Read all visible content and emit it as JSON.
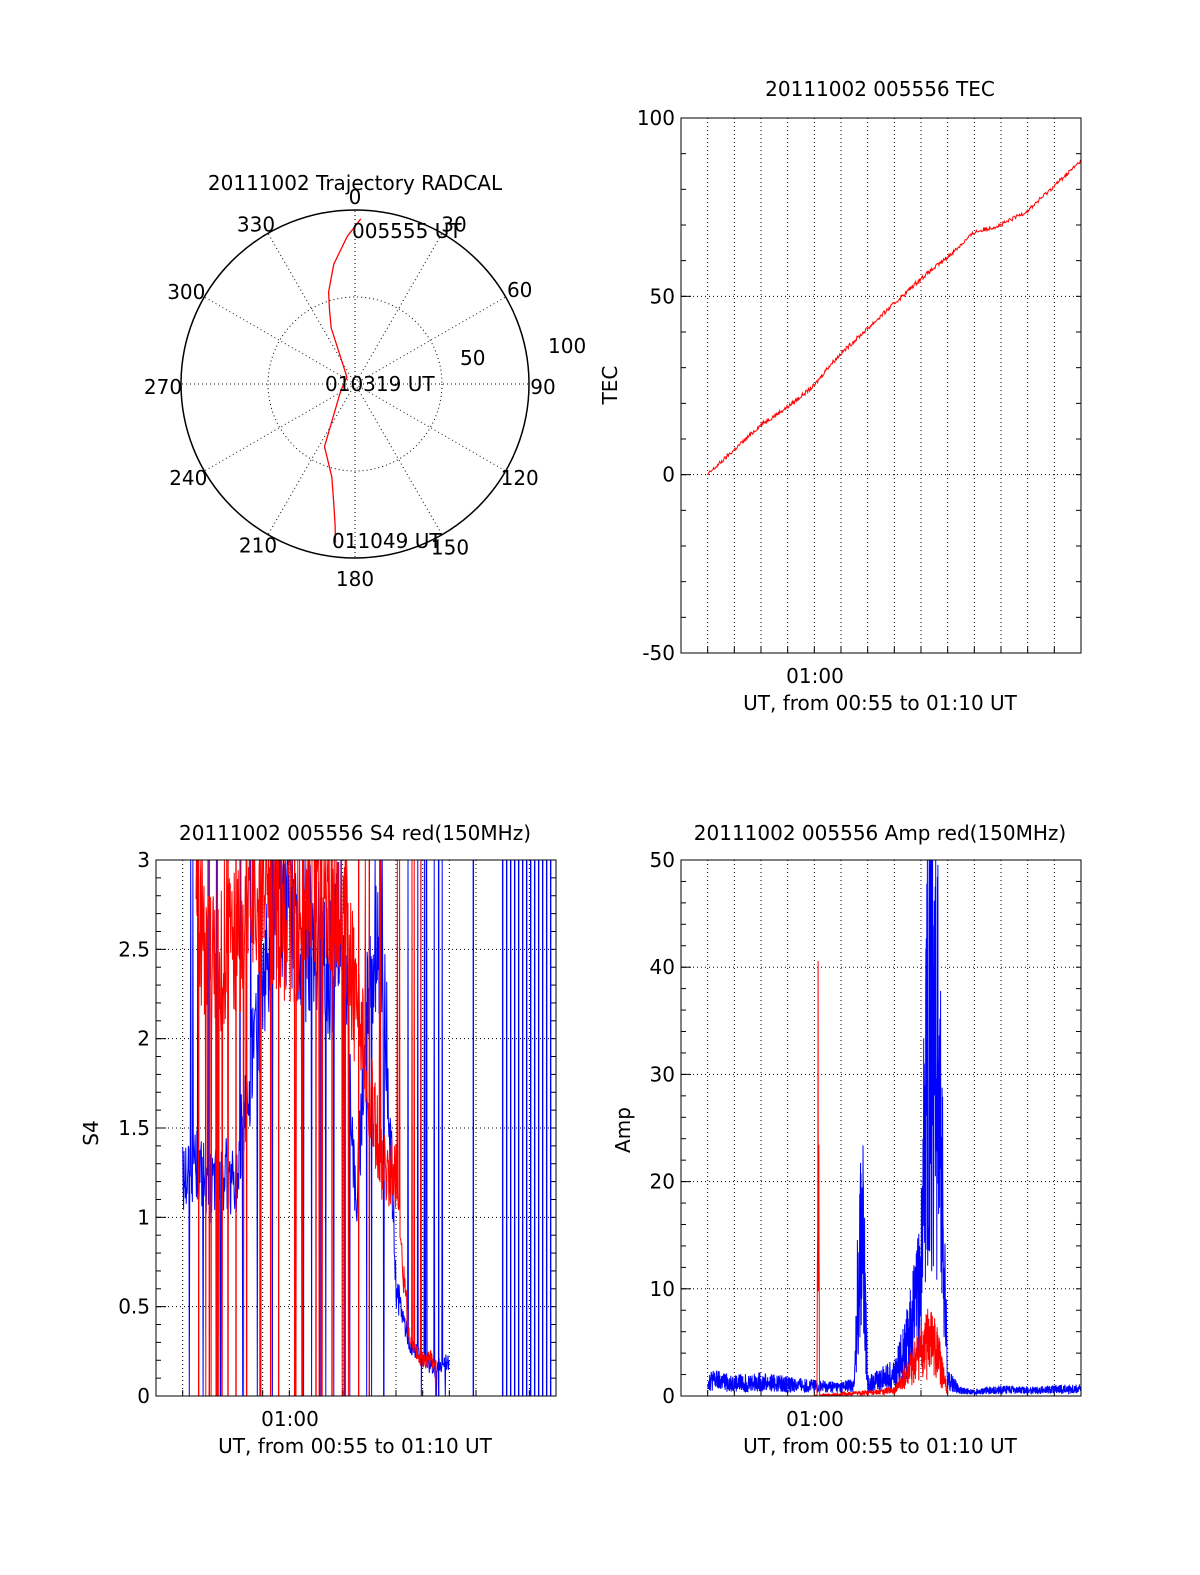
{
  "colors": {
    "red": "#ff0000",
    "blue": "#0000ff",
    "axis": "#000000",
    "grid": "#000000"
  },
  "chart_data": [
    {
      "id": "polar",
      "type": "scatter",
      "title": "20111002 Trajectory RADCAL",
      "angle_labels": [
        "0",
        "30",
        "60",
        "90",
        "120",
        "150",
        "180",
        "210",
        "240",
        "270",
        "300",
        "330"
      ],
      "radius_labels": [
        "50",
        "100"
      ],
      "rlim": [
        0,
        100
      ],
      "grid": true,
      "annotations": [
        "005555 UT",
        "010319 UT",
        "011049 UT"
      ],
      "series": [
        {
          "color": "red",
          "azimuth_deg": [
            2,
            357,
            350,
            344,
            341,
            337,
            310,
            245,
            206,
            194,
            190,
            188,
            187
          ],
          "radius": [
            95,
            85,
            70,
            55,
            45,
            35,
            6,
            9,
            40,
            55,
            70,
            82,
            92
          ]
        }
      ]
    },
    {
      "id": "tec",
      "type": "line",
      "title": "20111002 005556 TEC",
      "ylabel": "TEC",
      "xlabel": "UT, from 00:55 to 01:10 UT",
      "xtick_labels": [
        "01:00"
      ],
      "xlim_min": [
        55,
        70
      ],
      "ylim": [
        -50,
        100
      ],
      "yticks": [
        -50,
        0,
        50,
        100
      ],
      "grid": true,
      "series": [
        {
          "color": "red",
          "x_min": [
            56,
            57,
            58,
            59,
            60,
            60.5,
            61,
            62,
            63,
            64,
            65,
            66,
            67,
            68,
            69,
            70
          ],
          "y": [
            0,
            7,
            14,
            19,
            25,
            30,
            34,
            41,
            48,
            55,
            61,
            68,
            70,
            74,
            81,
            88
          ]
        }
      ]
    },
    {
      "id": "s4",
      "type": "line",
      "title": "20111002 005556 S4 red(150MHz)",
      "ylabel": "S4",
      "xlabel": "UT, from 00:55 to 01:10 UT",
      "xtick_labels": [
        "01:00"
      ],
      "xlim_min": [
        55,
        70
      ],
      "ylim": [
        0,
        3
      ],
      "yticks": [
        0,
        0.5,
        1,
        1.5,
        2,
        2.5,
        3
      ],
      "ytick_labels": [
        "0",
        "0.5",
        "1",
        "1.5",
        "2",
        "2.5",
        "3"
      ],
      "grid": true,
      "series": [
        {
          "color": "blue",
          "x_min": [
            56,
            56.5,
            57,
            57.5,
            58,
            58.5,
            59,
            59.5,
            60,
            60.5,
            61,
            61.5,
            62,
            62.5,
            63,
            63.5,
            64,
            64.5,
            65,
            65.5,
            66
          ],
          "y": [
            1.2,
            1.3,
            1.15,
            1.25,
            1.2,
            1.8,
            2.3,
            2.9,
            2.7,
            2.5,
            2.6,
            2.3,
            2.8,
            1.0,
            2.4,
            2.6,
            0.6,
            0.3,
            0.2,
            0.15,
            0.2
          ]
        },
        {
          "color": "red",
          "x_min": [
            56.5,
            57,
            58,
            59,
            60,
            60.5,
            61,
            62,
            62.5,
            63,
            63.5,
            64,
            64.5,
            65,
            65.5
          ],
          "y": [
            2.8,
            2.4,
            2.5,
            2.9,
            2.6,
            2.7,
            2.9,
            2.7,
            2.2,
            1.7,
            1.3,
            1.2,
            0.3,
            0.2,
            0.2
          ]
        }
      ]
    },
    {
      "id": "amp",
      "type": "line",
      "title": "20111002 005556 Amp red(150MHz)",
      "ylabel": "Amp",
      "xlabel": "UT, from 00:55 to 01:10 UT",
      "xtick_labels": [
        "01:00"
      ],
      "xlim_min": [
        55,
        70
      ],
      "ylim": [
        0,
        50
      ],
      "yticks": [
        0,
        10,
        20,
        30,
        40,
        50
      ],
      "grid": true,
      "series": [
        {
          "color": "blue",
          "x_min": [
            56,
            57,
            58,
            59,
            60,
            61,
            61.5,
            61.7,
            61.8,
            62,
            63,
            63.5,
            64,
            64.3,
            64.6,
            65,
            65.5,
            66,
            67,
            68,
            69,
            70
          ],
          "y": [
            1.5,
            1.2,
            1.3,
            1.1,
            0.9,
            0.8,
            1.0,
            14,
            16,
            1.2,
            2,
            5,
            10,
            40,
            33,
            1.5,
            0.5,
            0.4,
            0.6,
            0.5,
            0.6,
            0.7
          ]
        },
        {
          "color": "red",
          "x_min": [
            60,
            60.1,
            60.15,
            60.2,
            60.3,
            63,
            63.5,
            64,
            64.3,
            64.6,
            65
          ],
          "y": [
            0,
            0,
            30,
            0,
            0,
            0.5,
            2,
            4,
            5,
            4,
            0.3
          ]
        }
      ]
    }
  ]
}
